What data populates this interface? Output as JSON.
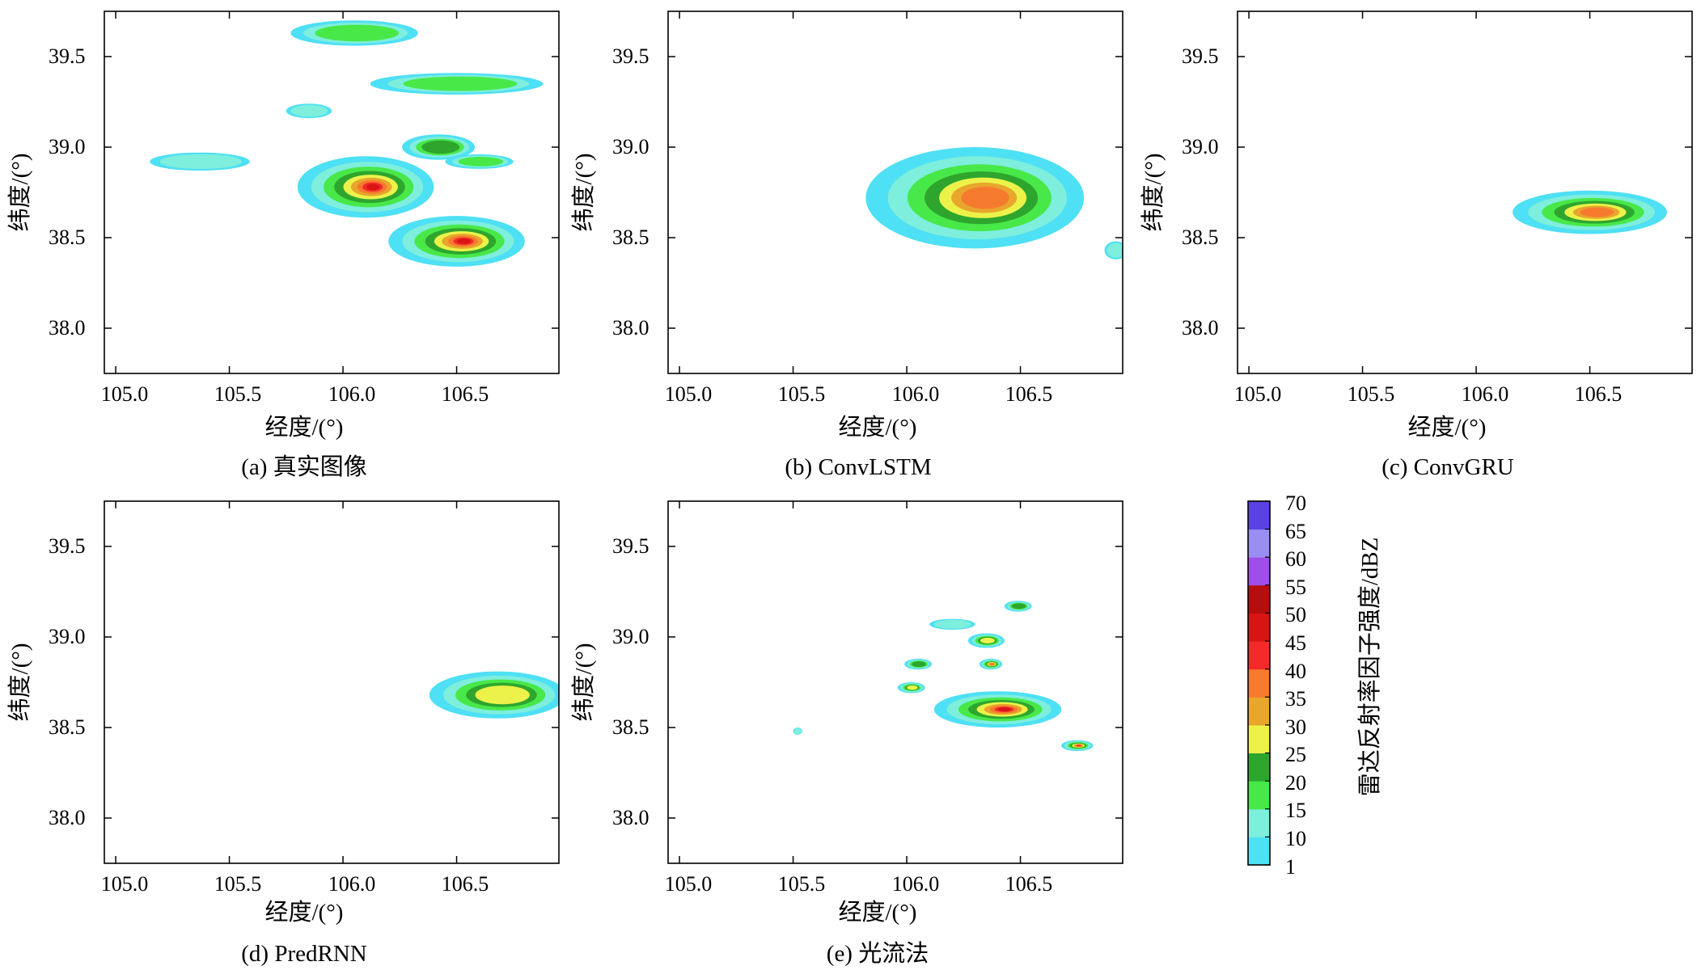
{
  "figure": {
    "xlabel": "经度/(°)",
    "ylabel": "纬度/(°)"
  },
  "colorbar": {
    "label": "雷达反射率因子强度/dBZ",
    "ticks": [
      "70",
      "65",
      "60",
      "55",
      "50",
      "45",
      "40",
      "35",
      "30",
      "25",
      "20",
      "15",
      "10",
      "1"
    ],
    "bounds": [
      1,
      10,
      15,
      20,
      25,
      30,
      35,
      40,
      45,
      50,
      55,
      60,
      65,
      70
    ],
    "colors": [
      "#4ee0f4",
      "#7eeedd",
      "#48e848",
      "#2ea62e",
      "#ecf24a",
      "#e8a62c",
      "#f67a2e",
      "#f42a2a",
      "#d81414",
      "#b40e0e",
      "#a04ee8",
      "#9a8ef2",
      "#5a42e2"
    ]
  },
  "chart_data": [
    {
      "type": "heatmap",
      "panel_id": "a",
      "caption": "(a) 真实图像",
      "xticks": [
        "105.0",
        "105.5",
        "106.0",
        "106.5"
      ],
      "yticks": [
        "39.5",
        "39.0",
        "38.5",
        "38.0"
      ],
      "xlim": [
        104.95,
        106.95
      ],
      "ylim": [
        37.75,
        39.75
      ],
      "blobs": [
        {
          "lon": 106.05,
          "lat": 39.63,
          "rx": 0.28,
          "ry": 0.07,
          "level": 2
        },
        {
          "lon": 106.5,
          "lat": 39.35,
          "rx": 0.38,
          "ry": 0.06,
          "level": 2
        },
        {
          "lon": 105.37,
          "lat": 38.92,
          "rx": 0.22,
          "ry": 0.05,
          "level": 1
        },
        {
          "lon": 105.85,
          "lat": 39.2,
          "rx": 0.1,
          "ry": 0.04,
          "level": 1
        },
        {
          "lon": 106.1,
          "lat": 38.78,
          "rx": 0.3,
          "ry": 0.17,
          "level": 8
        },
        {
          "lon": 106.5,
          "lat": 38.48,
          "rx": 0.3,
          "ry": 0.14,
          "level": 8
        },
        {
          "lon": 106.42,
          "lat": 39.0,
          "rx": 0.16,
          "ry": 0.07,
          "level": 3
        },
        {
          "lon": 106.6,
          "lat": 38.92,
          "rx": 0.15,
          "ry": 0.04,
          "level": 2
        }
      ]
    },
    {
      "type": "heatmap",
      "panel_id": "b",
      "caption": "(b) ConvLSTM",
      "xticks": [
        "105.0",
        "105.5",
        "106.0",
        "106.5"
      ],
      "yticks": [
        "39.5",
        "39.0",
        "38.5",
        "38.0"
      ],
      "xlim": [
        104.95,
        106.95
      ],
      "ylim": [
        37.75,
        39.75
      ],
      "blobs": [
        {
          "lon": 106.3,
          "lat": 38.72,
          "rx": 0.48,
          "ry": 0.28,
          "level": 6
        },
        {
          "lon": 106.92,
          "lat": 38.43,
          "rx": 0.05,
          "ry": 0.05,
          "level": 1
        }
      ]
    },
    {
      "type": "heatmap",
      "panel_id": "c",
      "caption": "(c) ConvGRU",
      "xticks": [
        "105.0",
        "105.5",
        "106.0",
        "106.5"
      ],
      "yticks": [
        "39.5",
        "39.0",
        "38.5",
        "38.0"
      ],
      "xlim": [
        104.95,
        106.95
      ],
      "ylim": [
        37.75,
        39.75
      ],
      "blobs": [
        {
          "lon": 106.5,
          "lat": 38.64,
          "rx": 0.34,
          "ry": 0.12,
          "level": 6
        }
      ]
    },
    {
      "type": "heatmap",
      "panel_id": "d",
      "caption": "(d) PredRNN",
      "xticks": [
        "105.0",
        "105.5",
        "106.0",
        "106.5"
      ],
      "yticks": [
        "39.5",
        "39.0",
        "38.5",
        "38.0"
      ],
      "xlim": [
        104.95,
        106.95
      ],
      "ylim": [
        37.75,
        39.75
      ],
      "blobs": [
        {
          "lon": 106.68,
          "lat": 38.68,
          "rx": 0.3,
          "ry": 0.13,
          "level": 4
        }
      ]
    },
    {
      "type": "heatmap",
      "panel_id": "e",
      "caption": "(e) 光流法",
      "xticks": [
        "105.0",
        "105.5",
        "106.0",
        "106.5"
      ],
      "yticks": [
        "39.5",
        "39.0",
        "38.5",
        "38.0"
      ],
      "xlim": [
        104.95,
        106.95
      ],
      "ylim": [
        37.75,
        39.75
      ],
      "blobs": [
        {
          "lon": 106.4,
          "lat": 38.6,
          "rx": 0.28,
          "ry": 0.1,
          "level": 8
        },
        {
          "lon": 106.75,
          "lat": 38.4,
          "rx": 0.07,
          "ry": 0.03,
          "level": 7
        },
        {
          "lon": 106.37,
          "lat": 38.85,
          "rx": 0.05,
          "ry": 0.03,
          "level": 6
        },
        {
          "lon": 106.35,
          "lat": 38.98,
          "rx": 0.08,
          "ry": 0.04,
          "level": 4
        },
        {
          "lon": 106.49,
          "lat": 39.17,
          "rx": 0.06,
          "ry": 0.03,
          "level": 3
        },
        {
          "lon": 106.2,
          "lat": 39.07,
          "rx": 0.1,
          "ry": 0.03,
          "level": 1
        },
        {
          "lon": 106.05,
          "lat": 38.85,
          "rx": 0.06,
          "ry": 0.03,
          "level": 3
        },
        {
          "lon": 106.02,
          "lat": 38.72,
          "rx": 0.06,
          "ry": 0.03,
          "level": 4
        },
        {
          "lon": 105.52,
          "lat": 38.48,
          "rx": 0.02,
          "ry": 0.02,
          "level": 1
        }
      ]
    }
  ]
}
